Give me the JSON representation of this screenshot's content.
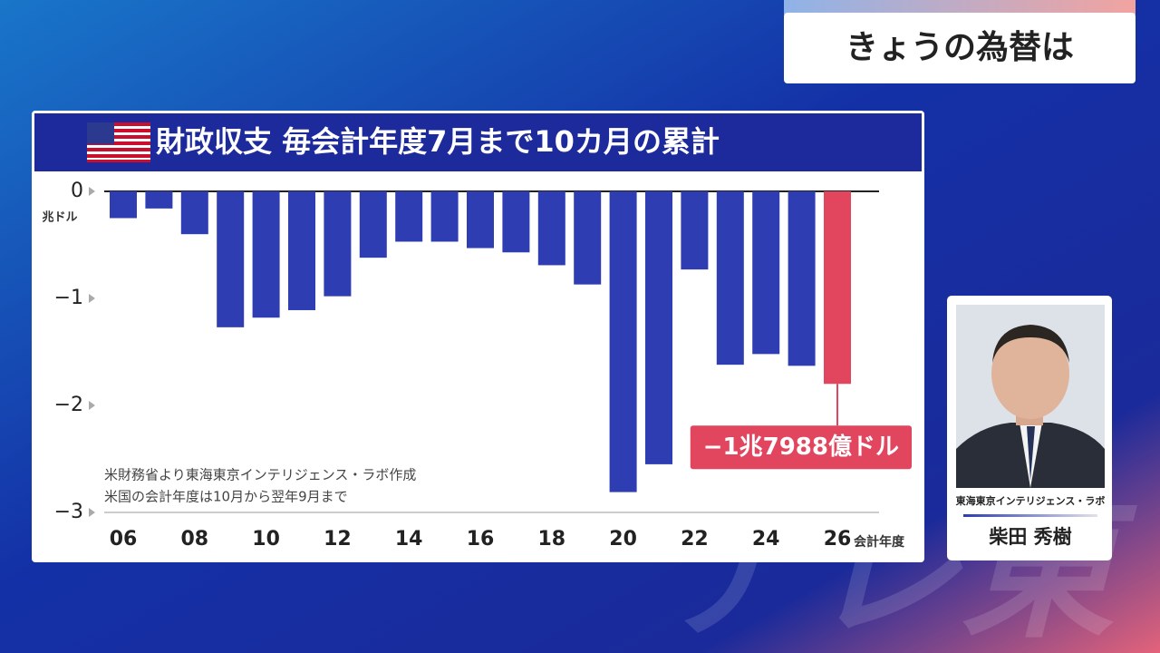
{
  "header": {
    "title": "きょうの為替は"
  },
  "chart_data": {
    "type": "bar",
    "title": "財政収支 毎会計年度7月まで10カ月の累計",
    "y_label": "兆ドル",
    "x_label": "会計年度",
    "categories": [
      "06",
      null,
      "08",
      null,
      "10",
      null,
      "12",
      null,
      "14",
      null,
      "16",
      null,
      "18",
      null,
      "20",
      null,
      "22",
      null,
      "24",
      null,
      "26"
    ],
    "values": [
      -0.25,
      -0.16,
      -0.4,
      -1.27,
      -1.18,
      -1.11,
      -0.98,
      -0.62,
      -0.47,
      -0.47,
      -0.53,
      -0.57,
      -0.69,
      -0.87,
      -2.81,
      -2.55,
      -0.73,
      -1.62,
      -1.52,
      -1.63,
      -1.7988
    ],
    "value_labels": [
      null,
      null,
      null,
      null,
      null,
      null,
      null,
      null,
      null,
      null,
      null,
      null,
      null,
      null,
      null,
      null,
      null,
      null,
      null,
      null,
      "−1兆7988億ドル"
    ],
    "colors": [
      "#2f3db3",
      "#2f3db3",
      "#2f3db3",
      "#2f3db3",
      "#2f3db3",
      "#2f3db3",
      "#2f3db3",
      "#2f3db3",
      "#2f3db3",
      "#2f3db3",
      "#2f3db3",
      "#2f3db3",
      "#2f3db3",
      "#2f3db3",
      "#2f3db3",
      "#2f3db3",
      "#2f3db3",
      "#2f3db3",
      "#2f3db3",
      "#2f3db3",
      "#e2465f"
    ],
    "ylim": [
      -3,
      0
    ],
    "yticks": [
      {
        "value": 0,
        "label": "0"
      },
      {
        "value": -1,
        "label": "−1"
      },
      {
        "value": -2,
        "label": "−2"
      },
      {
        "value": -3,
        "label": "−3"
      }
    ],
    "notes": [
      "米財務省より東海東京インテリジェンス・ラボ作成",
      "米国の会計年度は10月から翌年9月まで"
    ]
  },
  "commentator": {
    "organization": "東海東京インテリジェンス・ラボ",
    "name": "柴田 秀樹"
  },
  "watermark": "テレ東"
}
